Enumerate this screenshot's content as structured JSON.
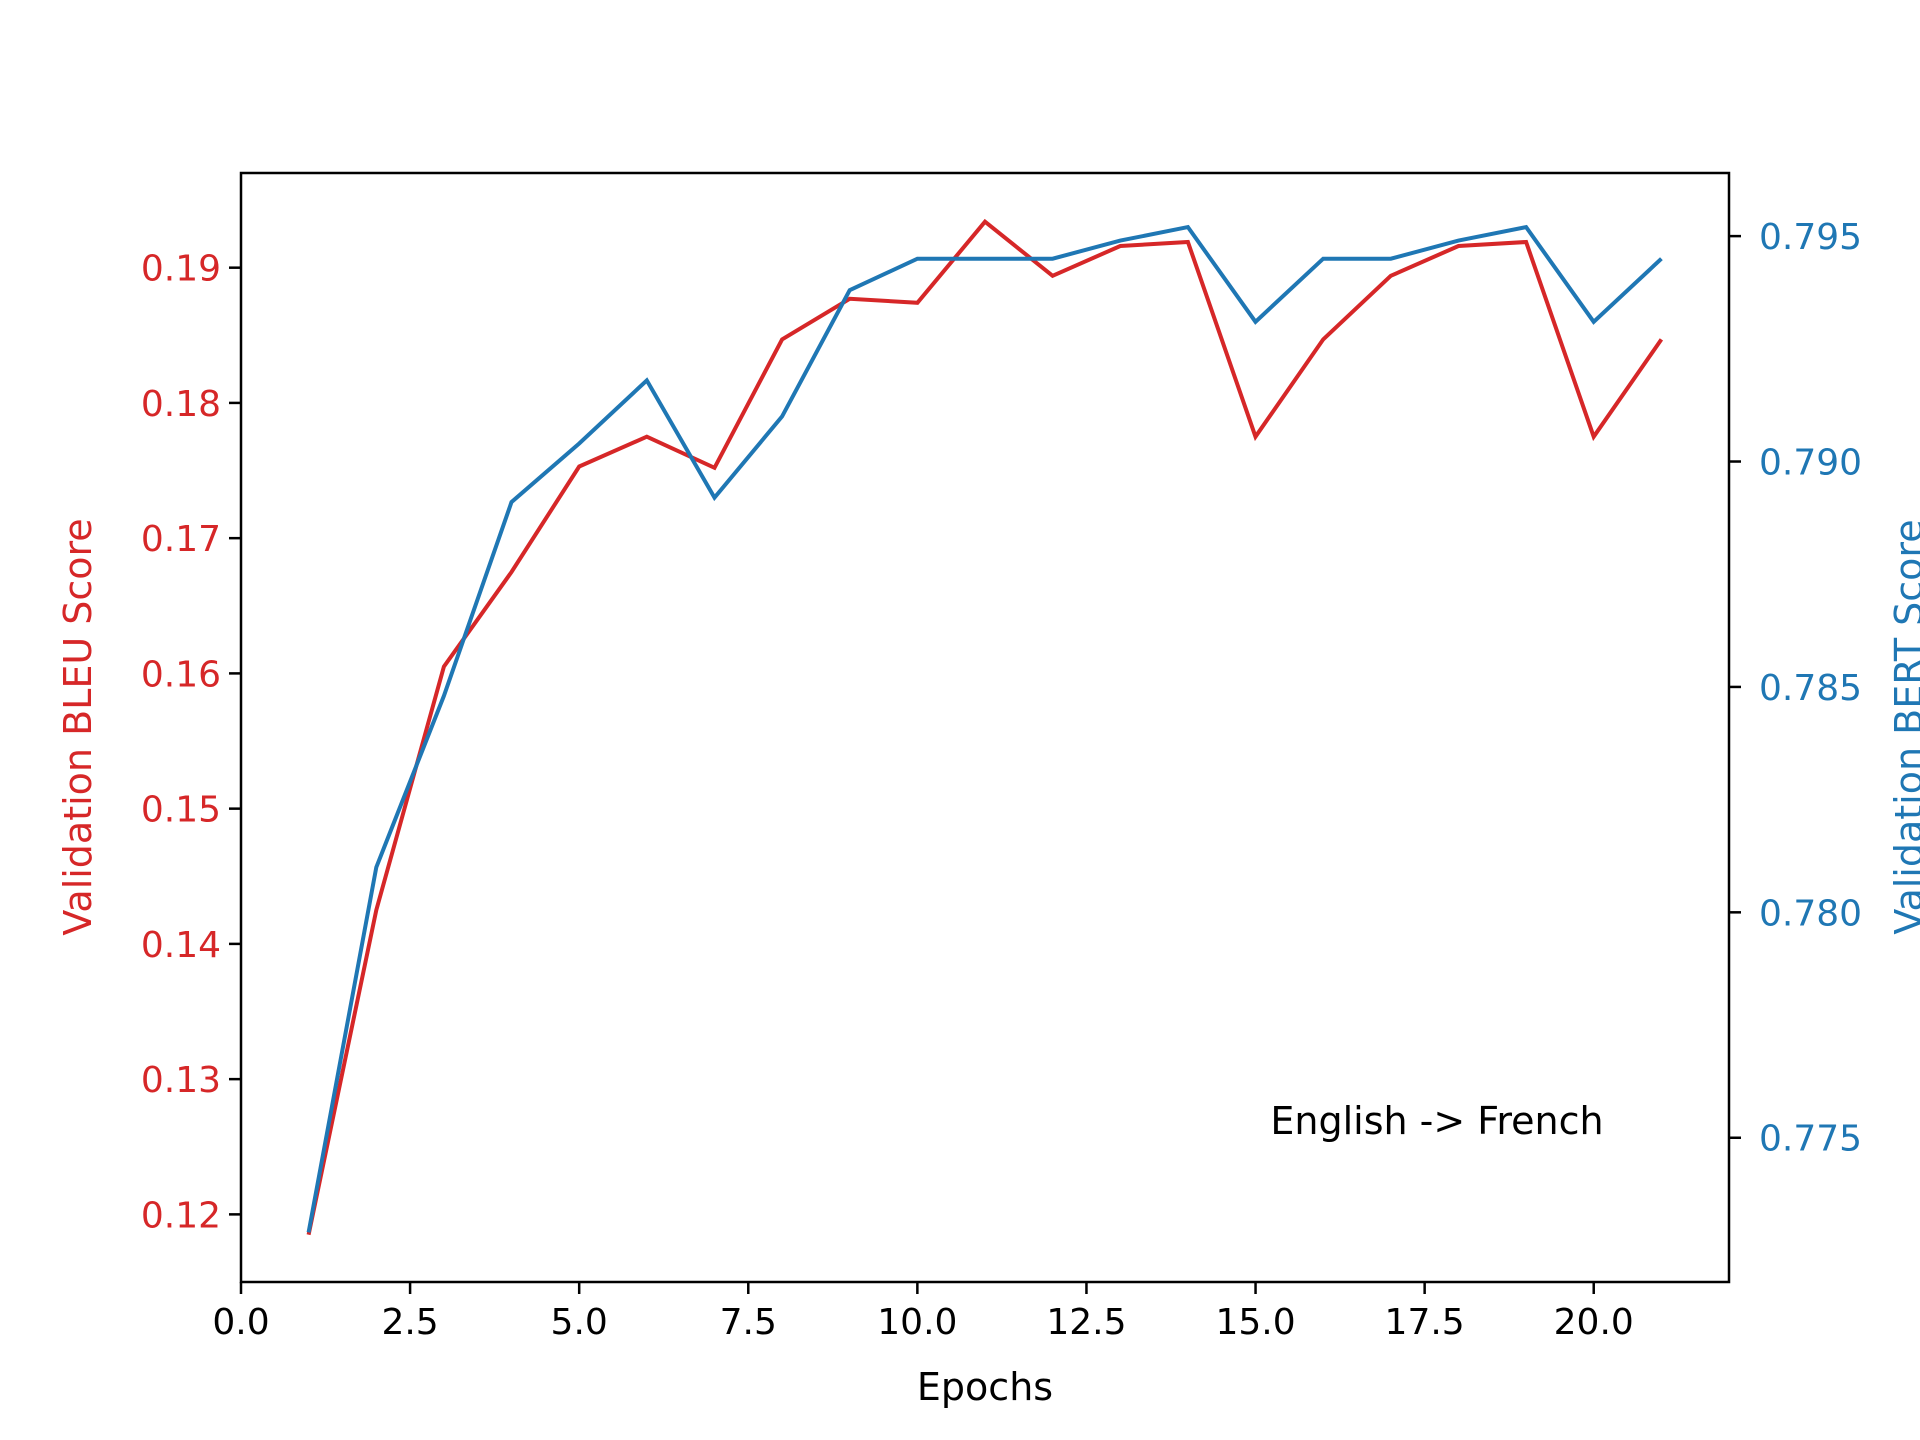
{
  "chart_data": {
    "type": "line",
    "title": "",
    "xlabel": "Epochs",
    "ylabel_left": "Validation BLEU Score",
    "ylabel_right": "Validation BERT Score",
    "annotation": "English -> French",
    "xlim": [
      0,
      22
    ],
    "ylim_left": [
      0.115,
      0.197
    ],
    "ylim_right": [
      0.7718,
      0.7964
    ],
    "x_ticks": [
      "0.0",
      "2.5",
      "5.0",
      "7.5",
      "10.0",
      "12.5",
      "15.0",
      "17.5",
      "20.0"
    ],
    "y_left_ticks": [
      "0.12",
      "0.13",
      "0.14",
      "0.15",
      "0.16",
      "0.17",
      "0.18",
      "0.19"
    ],
    "y_right_ticks": [
      "0.775",
      "0.780",
      "0.785",
      "0.790",
      "0.795"
    ],
    "grid": false,
    "x": [
      1,
      2,
      3,
      4,
      5,
      6,
      7,
      8,
      9,
      10,
      11,
      12,
      13,
      14,
      15,
      16,
      17,
      18,
      19,
      20,
      21
    ],
    "series": [
      {
        "axis": "left",
        "color": "#d62728",
        "values": [
          0.1185,
          0.1425,
          0.1605,
          0.1675,
          0.1753,
          0.1775,
          0.1752,
          0.1847,
          0.1877,
          0.1874,
          0.1934,
          0.1894,
          0.1916,
          0.1919,
          0.1775,
          0.1847,
          0.1894,
          0.1916,
          0.1919,
          0.1775,
          0.1847
        ]
      },
      {
        "axis": "right",
        "color": "#1f77b4",
        "values": [
          0.7729,
          0.781,
          0.7848,
          0.7891,
          0.7904,
          0.7918,
          0.7892,
          0.791,
          0.7938,
          0.7945,
          0.7945,
          0.7945,
          0.7949,
          0.7952,
          0.7931,
          0.7945,
          0.7945,
          0.7949,
          0.7952,
          0.7931,
          0.7945
        ]
      }
    ]
  }
}
